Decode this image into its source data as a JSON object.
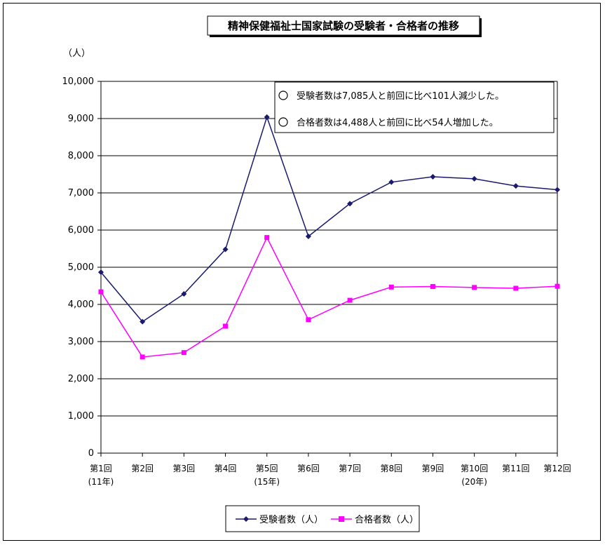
{
  "chart_data": {
    "type": "line",
    "title": "精神保健福祉士国家試験の受験者・合格者の推移",
    "ylabel": "（人）",
    "ylim": [
      0,
      10000
    ],
    "y_ticks": [
      "0",
      "1,000",
      "2,000",
      "3,000",
      "4,000",
      "5,000",
      "6,000",
      "7,000",
      "8,000",
      "9,000",
      "10,000"
    ],
    "categories": [
      "第1回",
      "第2回",
      "第3回",
      "第4回",
      "第5回",
      "第6回",
      "第7回",
      "第8回",
      "第9回",
      "第10回",
      "第11回",
      "第12回"
    ],
    "sub_labels": [
      "(11年)",
      "",
      "",
      "",
      "(15年)",
      "",
      "",
      "",
      "",
      "(20年)",
      "",
      ""
    ],
    "grid": true,
    "series": [
      {
        "name": "受験者数（人）",
        "color": "#1a1a6e",
        "marker": "diamond",
        "values": [
          4866,
          3535,
          4282,
          5480,
          9039,
          5831,
          6711,
          7289,
          7434,
          7379,
          7186,
          7085
        ]
      },
      {
        "name": "合格者数（人）",
        "color": "#ff00ff",
        "marker": "square",
        "values": [
          4338,
          2586,
          2704,
          3415,
          5799,
          3589,
          4111,
          4467,
          4482,
          4456,
          4434,
          4488
        ]
      }
    ],
    "annotations": [
      "受験者数は7,085人と前回に比べ101人減少した。",
      "合格者数は4,488人と前回に比べ54人増加した。"
    ],
    "legend_position": "bottom"
  }
}
